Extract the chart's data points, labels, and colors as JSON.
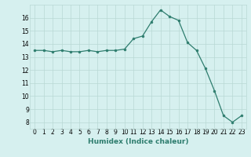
{
  "x": [
    0,
    1,
    2,
    3,
    4,
    5,
    6,
    7,
    8,
    9,
    10,
    11,
    12,
    13,
    14,
    15,
    16,
    17,
    18,
    19,
    20,
    21,
    22,
    23
  ],
  "y": [
    13.5,
    13.5,
    13.4,
    13.5,
    13.4,
    13.4,
    13.5,
    13.4,
    13.5,
    13.5,
    13.6,
    14.4,
    14.6,
    15.7,
    16.6,
    16.1,
    15.8,
    14.1,
    13.5,
    12.1,
    10.4,
    8.5,
    8.0,
    8.5
  ],
  "line_color": "#2e7d6e",
  "marker": "o",
  "marker_size": 2,
  "bg_color": "#d6f0ef",
  "grid_color": "#b8d8d4",
  "xlabel": "Humidex (Indice chaleur)",
  "xlim": [
    -0.5,
    23.5
  ],
  "ylim": [
    7.5,
    17.0
  ],
  "yticks": [
    8,
    9,
    10,
    11,
    12,
    13,
    14,
    15,
    16
  ],
  "xticks": [
    0,
    1,
    2,
    3,
    4,
    5,
    6,
    7,
    8,
    9,
    10,
    11,
    12,
    13,
    14,
    15,
    16,
    17,
    18,
    19,
    20,
    21,
    22,
    23
  ],
  "tick_fontsize": 5.5,
  "xlabel_fontsize": 6.5,
  "xlabel_bold": true
}
